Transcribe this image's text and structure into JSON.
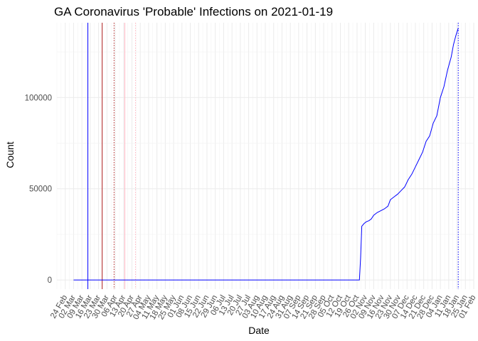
{
  "chart_data": {
    "type": "line",
    "title": "GA Coronavirus 'Probable' Infections on 2021-01-19",
    "xlabel": "Date",
    "ylabel": "Count",
    "ylim": [
      -5000,
      141000
    ],
    "xlim": [
      "2020-02-17",
      "2021-02-01"
    ],
    "y_ticks": [
      0,
      50000,
      100000
    ],
    "y_tick_labels": [
      "0",
      "50000",
      "100000"
    ],
    "x_ticks": [
      "2020-02-24",
      "2020-03-02",
      "2020-03-09",
      "2020-03-16",
      "2020-03-23",
      "2020-03-30",
      "2020-04-06",
      "2020-04-13",
      "2020-04-20",
      "2020-04-27",
      "2020-05-04",
      "2020-05-11",
      "2020-05-18",
      "2020-05-25",
      "2020-06-01",
      "2020-06-08",
      "2020-06-15",
      "2020-06-22",
      "2020-06-29",
      "2020-07-06",
      "2020-07-13",
      "2020-07-20",
      "2020-07-27",
      "2020-08-03",
      "2020-08-10",
      "2020-08-17",
      "2020-08-24",
      "2020-08-31",
      "2020-09-07",
      "2020-09-14",
      "2020-09-21",
      "2020-09-28",
      "2020-10-05",
      "2020-10-12",
      "2020-10-19",
      "2020-10-26",
      "2020-11-02",
      "2020-11-09",
      "2020-11-16",
      "2020-11-23",
      "2020-11-30",
      "2020-12-07",
      "2020-12-14",
      "2020-12-21",
      "2020-12-28",
      "2021-01-04",
      "2021-01-11",
      "2021-01-18",
      "2021-01-25",
      "2021-02-01"
    ],
    "x_tick_labels": [
      "24 Feb",
      "02 Mar",
      "09 Mar",
      "16 Mar",
      "23 Mar",
      "30 Mar",
      "06 Apr",
      "13 Apr",
      "20 Apr",
      "27 Apr",
      "04 May",
      "11 May",
      "18 May",
      "25 May",
      "01 Jun",
      "08 Jun",
      "15 Jun",
      "22 Jun",
      "29 Jun",
      "06 Jul",
      "13 Jul",
      "20 Jul",
      "27 Jul",
      "03 Aug",
      "10 Aug",
      "17 Aug",
      "24 Aug",
      "31 Aug",
      "07 Sep",
      "14 Sep",
      "21 Sep",
      "28 Sep",
      "05 Oct",
      "12 Oct",
      "19 Oct",
      "26 Oct",
      "02 Nov",
      "09 Nov",
      "16 Nov",
      "23 Nov",
      "30 Nov",
      "07 Dec",
      "14 Dec",
      "21 Dec",
      "28 Dec",
      "04 Jan",
      "11 Jan",
      "18 Jan",
      "25 Jan",
      "01 Feb"
    ],
    "grid": true,
    "series": [
      {
        "color": "#0000ff",
        "points": [
          [
            "2020-03-02",
            0
          ],
          [
            "2020-10-28",
            0
          ],
          [
            "2020-10-29",
            12000
          ],
          [
            "2020-10-30",
            29500
          ],
          [
            "2020-11-01",
            31000
          ],
          [
            "2020-11-03",
            32000
          ],
          [
            "2020-11-05",
            32500
          ],
          [
            "2020-11-07",
            33500
          ],
          [
            "2020-11-09",
            35500
          ],
          [
            "2020-11-12",
            37000
          ],
          [
            "2020-11-15",
            38000
          ],
          [
            "2020-11-18",
            39000
          ],
          [
            "2020-11-21",
            40500
          ],
          [
            "2020-11-23",
            44000
          ],
          [
            "2020-11-26",
            45500
          ],
          [
            "2020-11-29",
            47000
          ],
          [
            "2020-12-02",
            49000
          ],
          [
            "2020-12-05",
            51000
          ],
          [
            "2020-12-08",
            55000
          ],
          [
            "2020-12-11",
            58000
          ],
          [
            "2020-12-14",
            62000
          ],
          [
            "2020-12-17",
            66000
          ],
          [
            "2020-12-20",
            70000
          ],
          [
            "2020-12-23",
            76000
          ],
          [
            "2020-12-26",
            79000
          ],
          [
            "2020-12-29",
            86000
          ],
          [
            "2021-01-01",
            90000
          ],
          [
            "2021-01-04",
            100000
          ],
          [
            "2021-01-07",
            106000
          ],
          [
            "2021-01-10",
            115000
          ],
          [
            "2021-01-13",
            122000
          ],
          [
            "2021-01-15",
            129000
          ],
          [
            "2021-01-17",
            134000
          ],
          [
            "2021-01-19",
            138000
          ]
        ]
      }
    ],
    "reference_lines": [
      {
        "x": "2020-03-14",
        "color": "#0000ff",
        "style": "solid"
      },
      {
        "x": "2020-03-26",
        "color": "#b22222",
        "style": "solid"
      },
      {
        "x": "2020-04-05",
        "color": "#b22222",
        "style": "dotted"
      },
      {
        "x": "2020-04-14",
        "color": "#ffb6c1",
        "style": "solid"
      },
      {
        "x": "2020-04-23",
        "color": "#ffb6c1",
        "style": "dotted"
      },
      {
        "x": "2021-01-19",
        "color": "#0000ff",
        "style": "dotted"
      }
    ]
  }
}
